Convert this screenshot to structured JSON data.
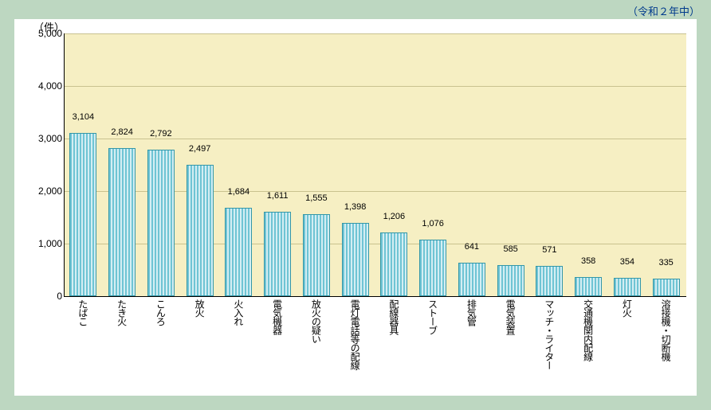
{
  "subtitle": "（令和２年中）",
  "yunit": "（件）",
  "chart": {
    "type": "bar",
    "ylim": [
      0,
      5000
    ],
    "ytick_step": 1000,
    "background_color": "#f6efc3",
    "grid_color": "#c9c28f",
    "bar_fill": "#6fc4d4",
    "bar_stripe": "#d4eef3",
    "bar_border": "#3497a8",
    "categories": [
      "たばこ",
      "たき火",
      "こんろ",
      "放火",
      "火入れ",
      "電気機器",
      "放火の疑い",
      "電灯電話等の配線",
      "配線器具",
      "ストーブ",
      "排気管",
      "電気装置",
      "マッチ・ライター",
      "交通機関内配線",
      "灯火",
      "溶接機・切断機"
    ],
    "values": [
      3104,
      2824,
      2792,
      2497,
      1684,
      1611,
      1555,
      1398,
      1206,
      1076,
      641,
      585,
      571,
      358,
      354,
      335
    ],
    "labels": [
      "3,104",
      "2,824",
      "2,792",
      "2,497",
      "1,684",
      "1,611",
      "1,555",
      "1,398",
      "1,206",
      "1,076",
      "641",
      "585",
      "571",
      "358",
      "354",
      "335"
    ]
  }
}
